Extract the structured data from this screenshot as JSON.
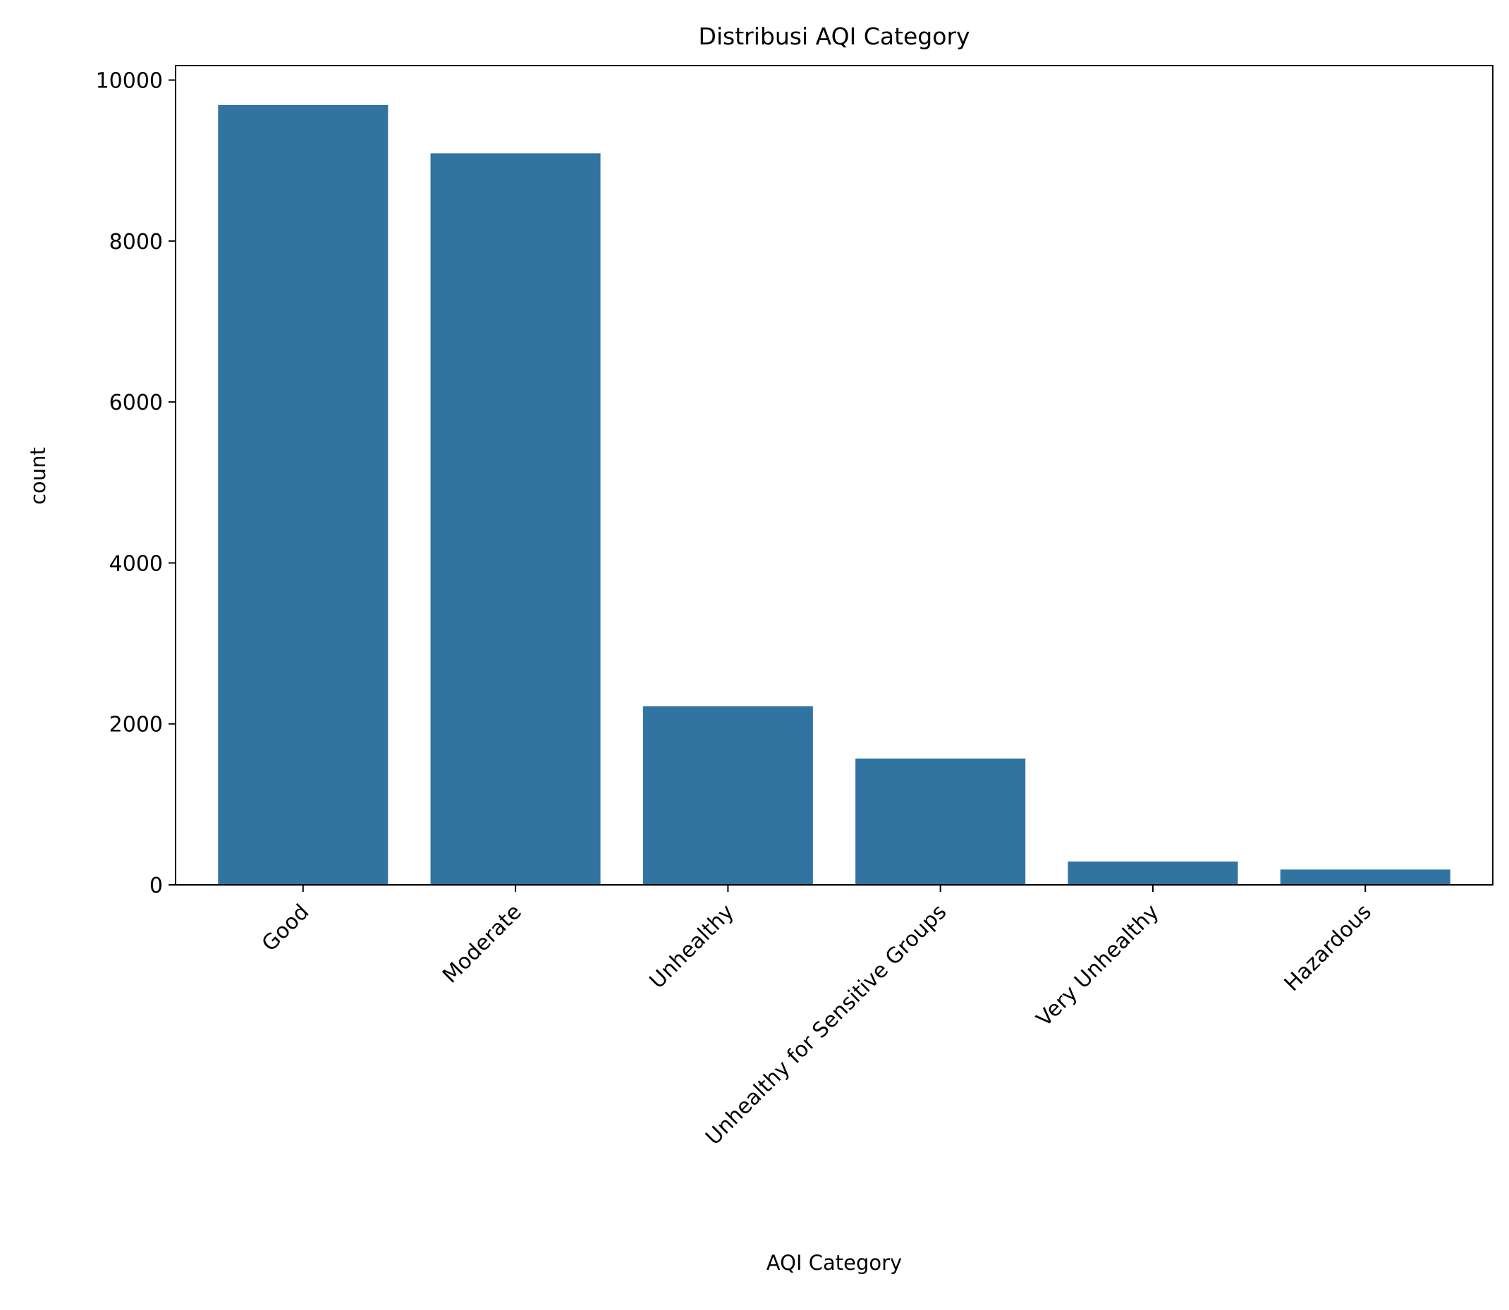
{
  "chart_data": {
    "type": "bar",
    "title": "Distribusi AQI Category",
    "xlabel": "AQI Category",
    "ylabel": "count",
    "categories": [
      "Good",
      "Moderate",
      "Unhealthy",
      "Unhealthy for Sensitive Groups",
      "Very Unhealthy",
      "Hazardous"
    ],
    "values": [
      9690,
      9090,
      2220,
      1570,
      290,
      190
    ],
    "ylim": [
      0,
      10180
    ],
    "yticks": [
      0,
      2000,
      4000,
      6000,
      8000,
      10000
    ],
    "ytick_labels": [
      "0",
      "2000",
      "4000",
      "6000",
      "8000",
      "10000"
    ],
    "bar_color": "#3274a1",
    "grid": false,
    "legend": "none"
  }
}
